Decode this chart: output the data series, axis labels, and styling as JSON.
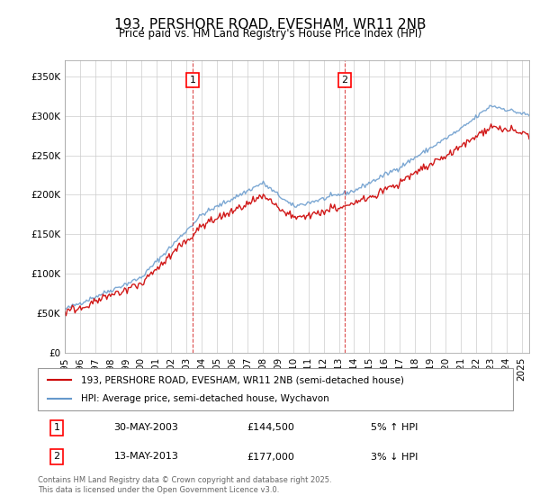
{
  "title": "193, PERSHORE ROAD, EVESHAM, WR11 2NB",
  "subtitle": "Price paid vs. HM Land Registry's House Price Index (HPI)",
  "ylabel_ticks": [
    "£0",
    "£50K",
    "£100K",
    "£150K",
    "£200K",
    "£250K",
    "£300K",
    "£350K"
  ],
  "ylim": [
    0,
    370000
  ],
  "xlim_start": 1995.0,
  "xlim_end": 2025.5,
  "line1_color": "#cc0000",
  "line2_color": "#6699cc",
  "marker1_year": 2003.41,
  "marker1_price": 144500,
  "marker2_year": 2013.36,
  "marker2_price": 177000,
  "legend_line1": "193, PERSHORE ROAD, EVESHAM, WR11 2NB (semi-detached house)",
  "legend_line2": "HPI: Average price, semi-detached house, Wychavon",
  "table_row1_num": "1",
  "table_row1_date": "30-MAY-2003",
  "table_row1_price": "£144,500",
  "table_row1_hpi": "5% ↑ HPI",
  "table_row2_num": "2",
  "table_row2_date": "13-MAY-2013",
  "table_row2_price": "£177,000",
  "table_row2_hpi": "3% ↓ HPI",
  "footer": "Contains HM Land Registry data © Crown copyright and database right 2025.\nThis data is licensed under the Open Government Licence v3.0.",
  "background_color": "#ffffff",
  "grid_color": "#cccccc"
}
